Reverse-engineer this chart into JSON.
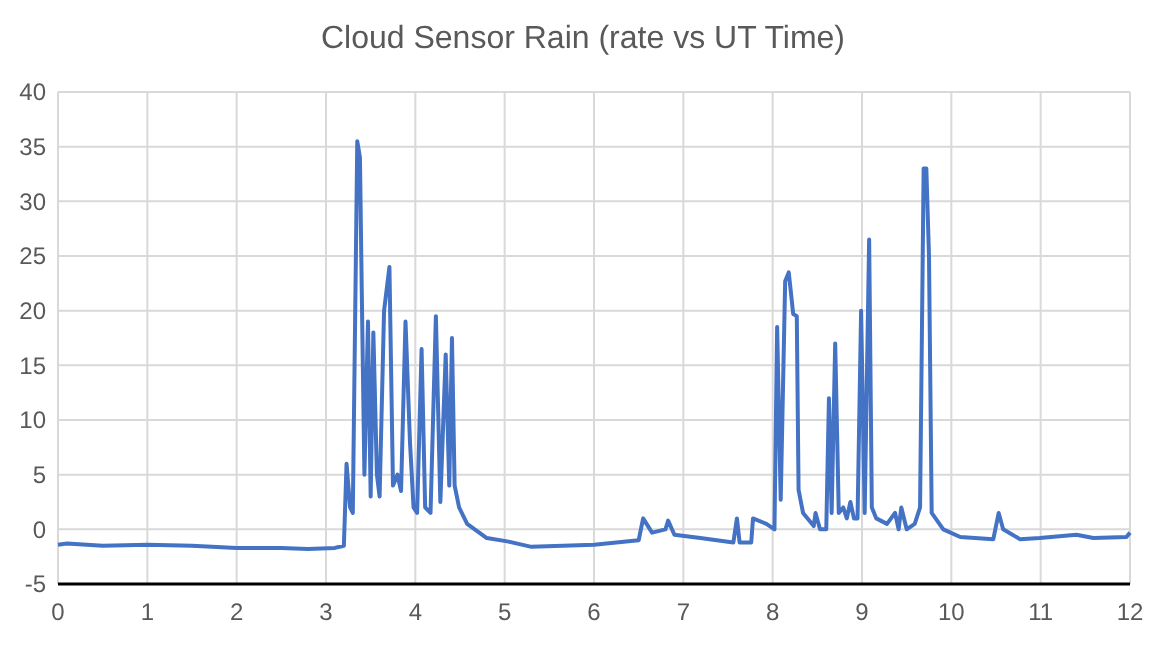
{
  "chart_data": {
    "type": "line",
    "title": "Cloud Sensor Rain (rate vs UT Time)",
    "xlim": [
      0,
      12
    ],
    "xticks": [
      0,
      1,
      2,
      3,
      4,
      5,
      6,
      7,
      8,
      9,
      10,
      11,
      12
    ],
    "ylim": [
      -5,
      40
    ],
    "yticks": [
      -5,
      0,
      5,
      10,
      15,
      20,
      25,
      30,
      35,
      40
    ],
    "grid": true,
    "series": [
      {
        "color": "#4472c4",
        "x": [
          0,
          0.1,
          0.5,
          1,
          1.5,
          2,
          2.5,
          2.8,
          3.1,
          3.2,
          3.23,
          3.27,
          3.3,
          3.35,
          3.38,
          3.4,
          3.43,
          3.47,
          3.5,
          3.53,
          3.57,
          3.6,
          3.65,
          3.71,
          3.75,
          3.8,
          3.84,
          3.89,
          3.94,
          3.98,
          4.02,
          4.07,
          4.11,
          4.17,
          4.23,
          4.28,
          4.34,
          4.38,
          4.41,
          4.44,
          4.49,
          4.58,
          4.8,
          5.03,
          5.3,
          6,
          6.5,
          6.55,
          6.65,
          6.8,
          6.83,
          6.9,
          7.19,
          7.56,
          7.6,
          7.63,
          7.76,
          7.78,
          7.93,
          8.02,
          8.05,
          8.09,
          8.14,
          8.18,
          8.23,
          8.27,
          8.29,
          8.34,
          8.46,
          8.48,
          8.53,
          8.6,
          8.63,
          8.66,
          8.7,
          8.74,
          8.79,
          8.83,
          8.87,
          8.91,
          8.95,
          8.99,
          9.03,
          9.08,
          9.11,
          9.16,
          9.28,
          9.37,
          9.41,
          9.44,
          9.5,
          9.59,
          9.65,
          9.69,
          9.72,
          9.75,
          9.78,
          9.91,
          10.1,
          10.47,
          10.53,
          10.58,
          10.77,
          10.99,
          11.4,
          11.59,
          11.96,
          12
        ],
        "values": [
          -1.4,
          -1.3,
          -1.5,
          -1.4,
          -1.5,
          -1.7,
          -1.7,
          -1.8,
          -1.7,
          -1.5,
          6,
          2,
          1.5,
          35.5,
          34,
          22,
          5,
          19,
          3,
          18,
          5,
          3,
          20,
          24,
          4,
          5,
          3.5,
          19,
          8,
          2,
          1.5,
          16.5,
          2,
          1.5,
          19.5,
          2.5,
          16,
          4,
          17.5,
          4,
          2,
          0.5,
          -0.8,
          -1.1,
          -1.6,
          -1.4,
          -1,
          1,
          -0.3,
          0,
          0.8,
          -0.5,
          -0.8,
          -1.2,
          1,
          -1.2,
          -1.2,
          1,
          0.5,
          0,
          18.5,
          2.7,
          22.7,
          23.5,
          19.7,
          19.5,
          3.6,
          1.5,
          0.3,
          1.5,
          0,
          0,
          12,
          1.5,
          17,
          1.5,
          2,
          1,
          2.5,
          1,
          1,
          20,
          1.5,
          26.5,
          2,
          1,
          0.5,
          1.5,
          0,
          2,
          0,
          0.5,
          2,
          33,
          33,
          25,
          1.5,
          0,
          -0.7,
          -0.9,
          1.5,
          0,
          -0.9,
          -0.8,
          -0.5,
          -0.8,
          -0.7,
          -0.3
        ]
      }
    ]
  }
}
